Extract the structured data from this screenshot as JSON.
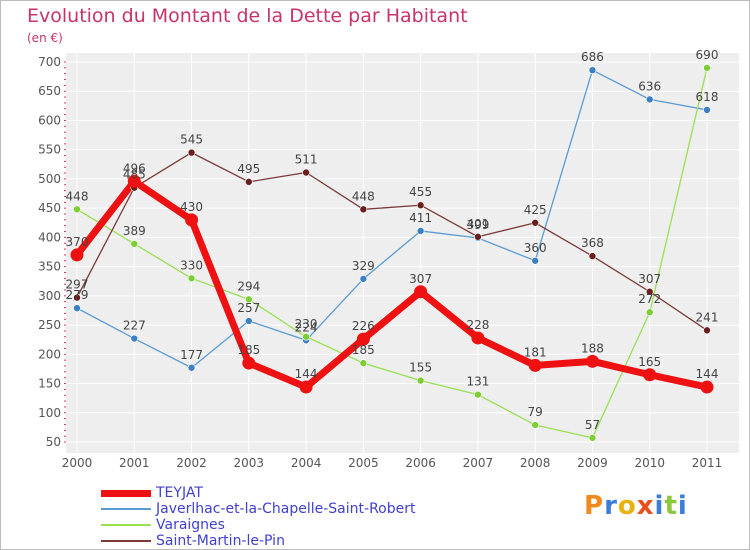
{
  "title": "Evolution du Montant de la Dette par Habitant",
  "unit": "(en €)",
  "logo": "Proxiti",
  "chart_data": {
    "type": "line",
    "title": "Evolution du Montant de la Dette par Habitant",
    "ylabel": "(en €)",
    "xlabel": "",
    "x": [
      "2000",
      "2001",
      "2002",
      "2003",
      "2004",
      "2005",
      "2006",
      "2007",
      "2008",
      "2009",
      "2010",
      "2011"
    ],
    "ylim": [
      50,
      700
    ],
    "yticks": [
      50,
      100,
      150,
      200,
      250,
      300,
      350,
      400,
      450,
      500,
      550,
      600,
      650,
      700
    ],
    "grid": true,
    "legend_position": "bottom-left",
    "series": [
      {
        "name": "Javerlhac-et-la-Chapelle-Saint-Robert",
        "color": "#5b9bd5",
        "point_color": "#3d7fc4",
        "values": [
          279,
          227,
          177,
          257,
          224,
          329,
          411,
          399,
          360,
          686,
          636,
          618
        ]
      },
      {
        "name": "Varaignes",
        "color": "#99e052",
        "point_color": "#7ccf33",
        "values": [
          448,
          389,
          330,
          294,
          230,
          185,
          155,
          131,
          79,
          57,
          272,
          690
        ]
      },
      {
        "name": "Saint-Martin-le-Pin",
        "color": "#7a3a3a",
        "point_color": "#6b1e1e",
        "values": [
          297,
          485,
          545,
          495,
          511,
          448,
          455,
          401,
          425,
          368,
          307,
          241
        ]
      },
      {
        "name": "TEYJAT",
        "color": "#ee1111",
        "point_color": "#ee1111",
        "values": [
          370,
          496,
          430,
          185,
          144,
          226,
          307,
          228,
          181,
          188,
          165,
          144
        ]
      }
    ]
  }
}
